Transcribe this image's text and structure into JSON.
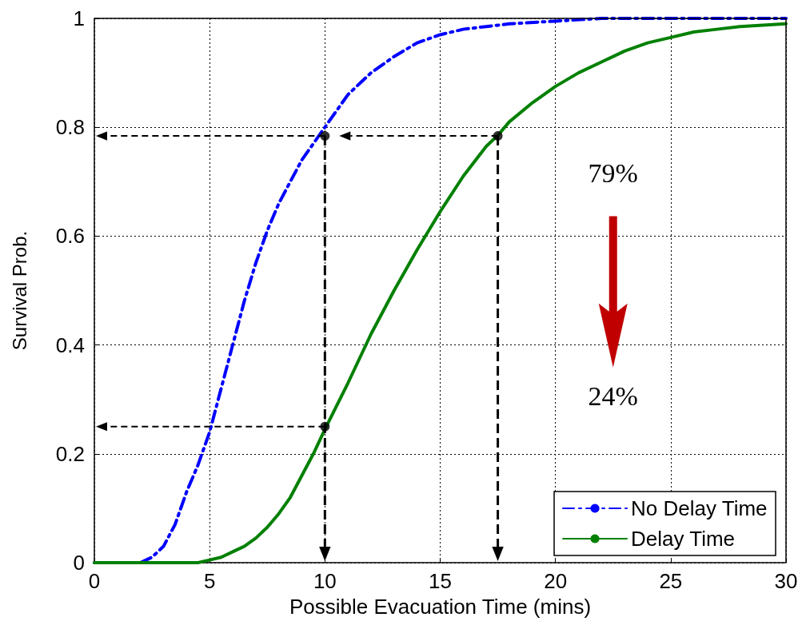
{
  "chart_data": {
    "type": "line",
    "xlabel": "Possible Evacuation Time (mins)",
    "ylabel": "Survival Prob.",
    "xlim": [
      0,
      30
    ],
    "xticks": [
      0,
      5,
      10,
      15,
      20,
      25,
      30
    ],
    "ylim": [
      0,
      1
    ],
    "yticks": [
      0,
      0.2,
      0.4,
      0.6,
      0.8,
      1
    ],
    "grid": true,
    "legend": "bottom right",
    "series": [
      {
        "name": "No Delay Time",
        "color": "#0000ff",
        "line_style": "dashed",
        "x": [
          0,
          1,
          2,
          2.5,
          3,
          3.5,
          4,
          4.5,
          5,
          5.5,
          6,
          6.5,
          7,
          7.5,
          8,
          8.5,
          9,
          9.5,
          10,
          11,
          12,
          13,
          14,
          15,
          16,
          17,
          18,
          20,
          22,
          30
        ],
        "values": [
          0,
          0,
          0,
          0.01,
          0.03,
          0.07,
          0.13,
          0.18,
          0.24,
          0.32,
          0.4,
          0.48,
          0.55,
          0.61,
          0.66,
          0.7,
          0.74,
          0.77,
          0.8,
          0.86,
          0.9,
          0.93,
          0.955,
          0.97,
          0.98,
          0.985,
          0.99,
          0.995,
          1,
          1
        ]
      },
      {
        "name": "Delay Time",
        "color": "#008000",
        "line_style": "solid",
        "x": [
          0,
          4,
          4.5,
          5,
          5.5,
          6,
          6.5,
          7,
          7.5,
          8,
          8.5,
          9,
          9.5,
          10,
          11,
          12,
          13,
          14,
          15,
          16,
          17,
          17.5,
          18,
          19,
          20,
          21,
          22,
          23,
          24,
          25,
          26,
          27,
          28,
          30
        ],
        "values": [
          0,
          0,
          0,
          0.005,
          0.01,
          0.02,
          0.03,
          0.045,
          0.065,
          0.09,
          0.12,
          0.16,
          0.2,
          0.245,
          0.33,
          0.42,
          0.5,
          0.575,
          0.645,
          0.71,
          0.765,
          0.785,
          0.81,
          0.845,
          0.875,
          0.9,
          0.92,
          0.94,
          0.955,
          0.965,
          0.975,
          0.98,
          0.985,
          0.99
        ]
      },
      {
        "type": "scatter",
        "color": "#000000",
        "marker": "circle",
        "x": [
          10,
          17.5,
          10
        ],
        "values": [
          0.784,
          0.784,
          0.25
        ]
      }
    ],
    "annotations": [
      "79%",
      "24%"
    ]
  }
}
